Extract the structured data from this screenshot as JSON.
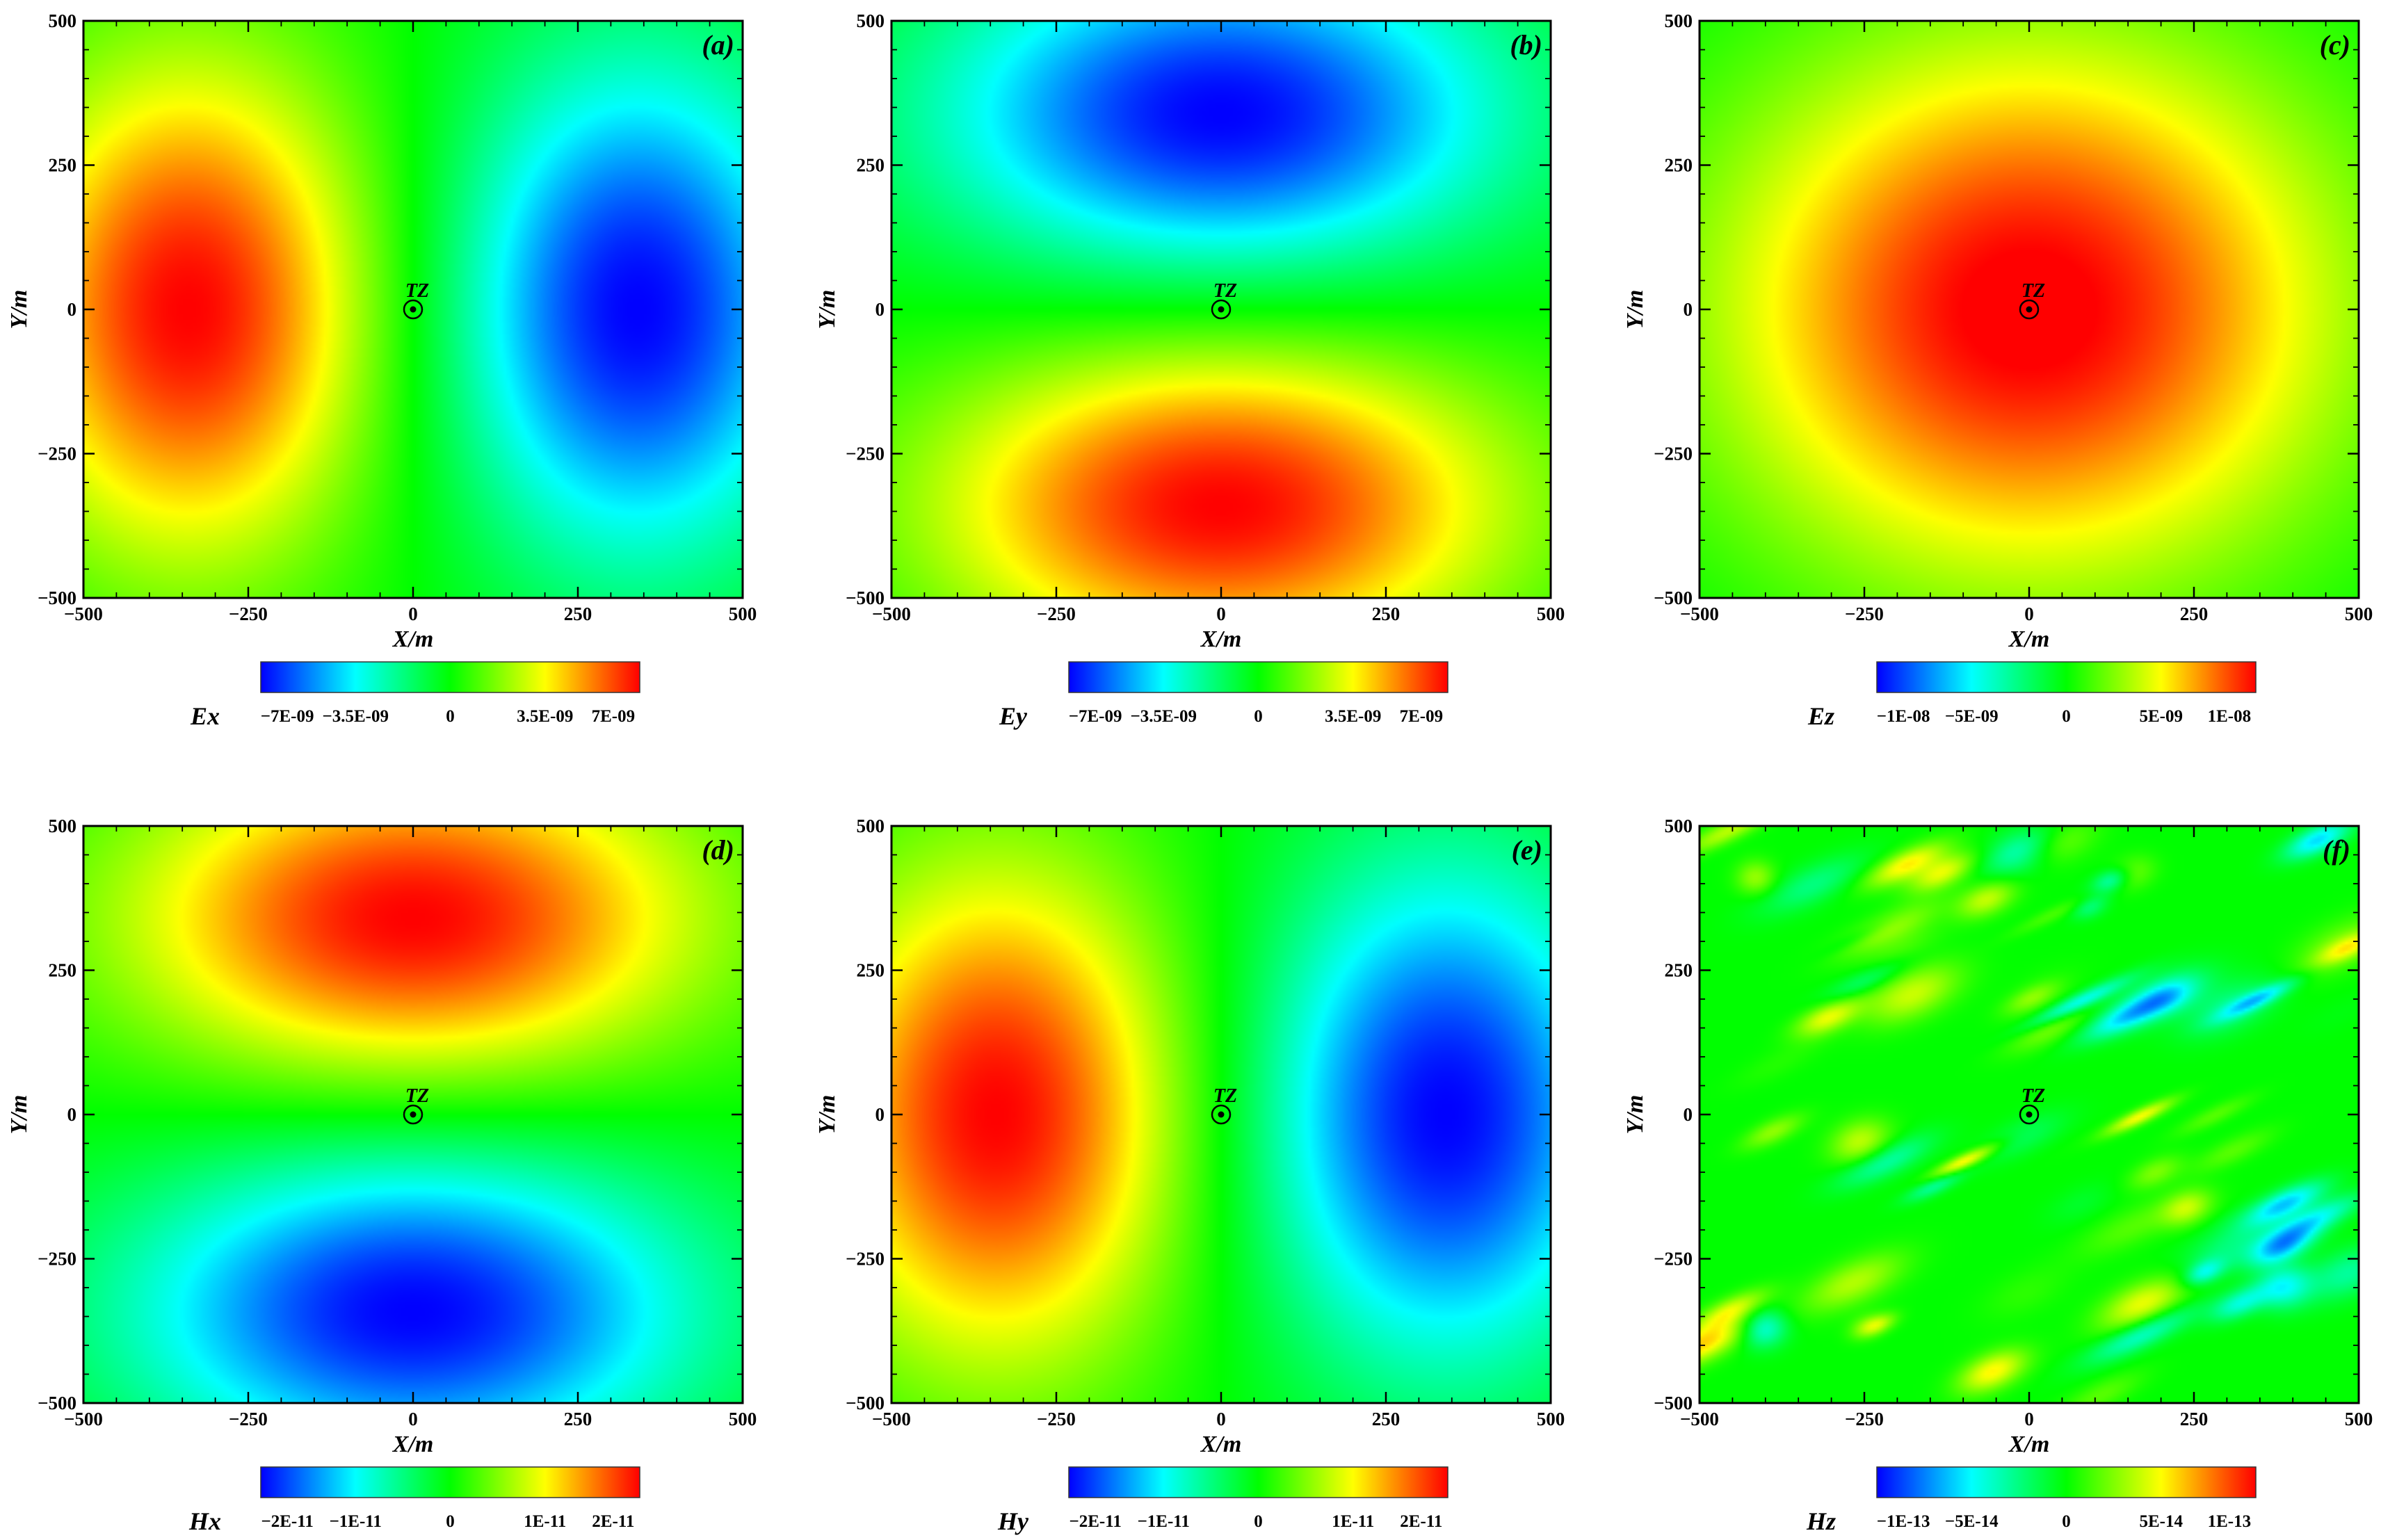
{
  "chart_data": [
    {
      "type": "heatmap",
      "panel_label": "(a)",
      "xlabel": "X/m",
      "ylabel": "Y/m",
      "xlim": [
        -500,
        500
      ],
      "ylim": [
        -500,
        500
      ],
      "x_ticks": [
        "-500",
        "-250",
        "0",
        "250",
        "500"
      ],
      "y_ticks": [
        "-500",
        "-250",
        "0",
        "250",
        "500"
      ],
      "marker": {
        "label": "TZ",
        "x": 0,
        "y": 0
      },
      "colorbar": {
        "label": "Ex",
        "range": [
          -7e-09,
          7e-09
        ],
        "ticks": [
          "-7E-09",
          "-3.5E-09",
          "0",
          "3.5E-09",
          "7E-09"
        ]
      },
      "field": {
        "pattern": "dipole-x",
        "peak_positive_at": [
          -340,
          0
        ],
        "peak_negative_at": [
          340,
          0
        ]
      }
    },
    {
      "type": "heatmap",
      "panel_label": "(b)",
      "xlabel": "X/m",
      "ylabel": "Y/m",
      "xlim": [
        -500,
        500
      ],
      "ylim": [
        -500,
        500
      ],
      "x_ticks": [
        "-500",
        "-250",
        "0",
        "250",
        "500"
      ],
      "y_ticks": [
        "-500",
        "-250",
        "0",
        "250",
        "500"
      ],
      "marker": {
        "label": "TZ",
        "x": 0,
        "y": 0
      },
      "colorbar": {
        "label": "Ey",
        "range": [
          -7e-09,
          7e-09
        ],
        "ticks": [
          "-7E-09",
          "-3.5E-09",
          "0",
          "3.5E-09",
          "7E-09"
        ]
      },
      "field": {
        "pattern": "dipole-y",
        "peak_positive_at": [
          0,
          -340
        ],
        "peak_negative_at": [
          0,
          340
        ]
      }
    },
    {
      "type": "heatmap",
      "panel_label": "(c)",
      "xlabel": "X/m",
      "ylabel": "Y/m",
      "xlim": [
        -500,
        500
      ],
      "ylim": [
        -500,
        500
      ],
      "x_ticks": [
        "-500",
        "-250",
        "0",
        "250",
        "500"
      ],
      "y_ticks": [
        "-500",
        "-250",
        "0",
        "250",
        "500"
      ],
      "marker": {
        "label": "TZ",
        "x": 0,
        "y": 0
      },
      "colorbar": {
        "label": "Ez",
        "range": [
          -1e-08,
          1e-08
        ],
        "ticks": [
          "-1E-08",
          "-5E-09",
          "0",
          "5E-09",
          "1E-08"
        ]
      },
      "field": {
        "pattern": "radial",
        "peak_positive_at": [
          0,
          0
        ]
      }
    },
    {
      "type": "heatmap",
      "panel_label": "(d)",
      "xlabel": "X/m",
      "ylabel": "Y/m",
      "xlim": [
        -500,
        500
      ],
      "ylim": [
        -500,
        500
      ],
      "x_ticks": [
        "-500",
        "-250",
        "0",
        "250",
        "500"
      ],
      "y_ticks": [
        "-500",
        "-250",
        "0",
        "250",
        "500"
      ],
      "marker": {
        "label": "TZ",
        "x": 0,
        "y": 0
      },
      "colorbar": {
        "label": "Hx",
        "range": [
          -2e-11,
          2e-11
        ],
        "ticks": [
          "-2E-11",
          "-1E-11",
          "0",
          "1E-11",
          "2E-11"
        ]
      },
      "field": {
        "pattern": "dipole-y",
        "peak_positive_at": [
          0,
          340
        ],
        "peak_negative_at": [
          0,
          -340
        ]
      }
    },
    {
      "type": "heatmap",
      "panel_label": "(e)",
      "xlabel": "X/m",
      "ylabel": "Y/m",
      "xlim": [
        -500,
        500
      ],
      "ylim": [
        -500,
        500
      ],
      "x_ticks": [
        "-500",
        "-250",
        "0",
        "250",
        "500"
      ],
      "y_ticks": [
        "-500",
        "-250",
        "0",
        "250",
        "500"
      ],
      "marker": {
        "label": "TZ",
        "x": 0,
        "y": 0
      },
      "colorbar": {
        "label": "Hy",
        "range": [
          -2e-11,
          2e-11
        ],
        "ticks": [
          "-2E-11",
          "-1E-11",
          "0",
          "1E-11",
          "2E-11"
        ]
      },
      "field": {
        "pattern": "dipole-x",
        "peak_positive_at": [
          -340,
          0
        ],
        "peak_negative_at": [
          340,
          0
        ]
      }
    },
    {
      "type": "heatmap",
      "panel_label": "(f)",
      "xlabel": "X/m",
      "ylabel": "Y/m",
      "xlim": [
        -500,
        500
      ],
      "ylim": [
        -500,
        500
      ],
      "x_ticks": [
        "-500",
        "-250",
        "0",
        "250",
        "500"
      ],
      "y_ticks": [
        "-500",
        "-250",
        "0",
        "250",
        "500"
      ],
      "marker": {
        "label": "TZ",
        "x": 0,
        "y": 0
      },
      "colorbar": {
        "label": "Hz",
        "range": [
          -1e-13,
          1e-13
        ],
        "ticks": [
          "-1E-13",
          "-5E-14",
          "0",
          "5E-14",
          "1E-13"
        ]
      },
      "field": {
        "pattern": "noise"
      }
    }
  ],
  "colormap": [
    "#0000ff",
    "#00ffff",
    "#00ff00",
    "#ffff00",
    "#ff0000"
  ]
}
